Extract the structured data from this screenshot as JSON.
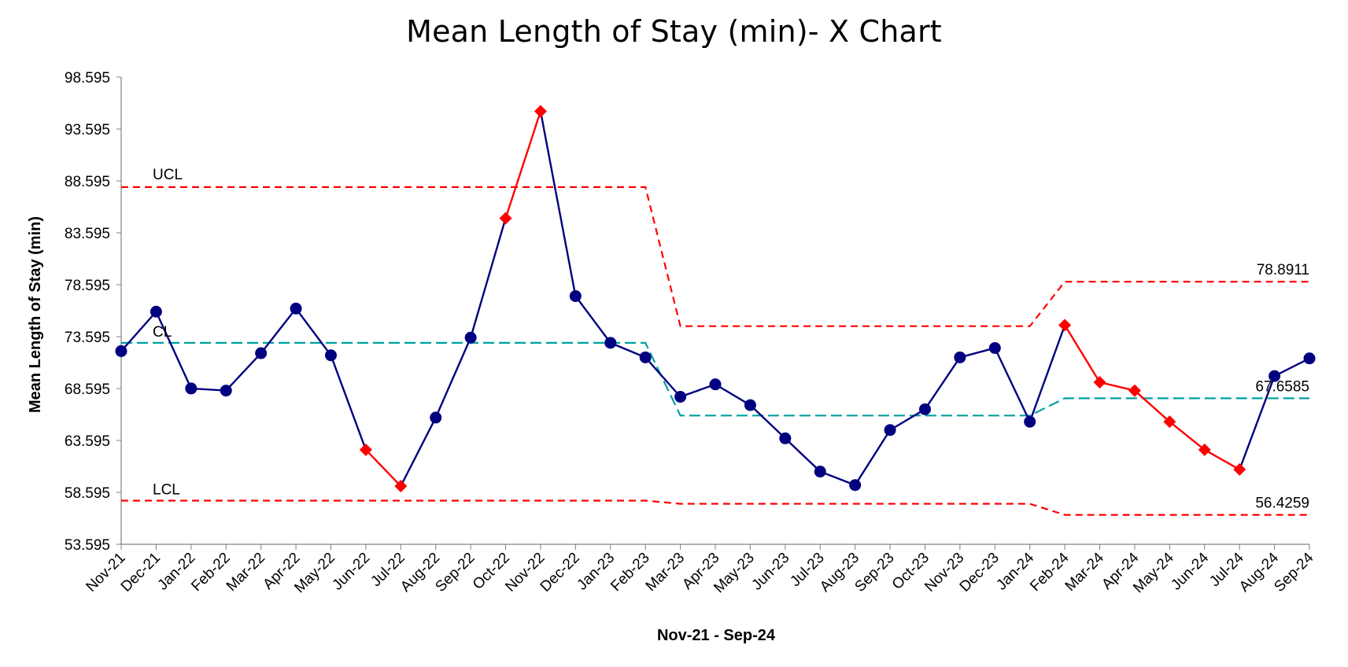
{
  "chart_data": {
    "type": "line",
    "title": "Mean Length of Stay (min)- X Chart",
    "xlabel": "Nov-21 - Sep-24",
    "ylabel": "Mean Length of Stay (min)",
    "ylim": [
      53.595,
      98.595
    ],
    "yticks": [
      "53.595",
      "58.595",
      "63.595",
      "68.595",
      "73.595",
      "78.595",
      "83.595",
      "88.595",
      "93.595",
      "98.595"
    ],
    "categories": [
      "Nov-21",
      "Dec-21",
      "Jan-22",
      "Feb-22",
      "Mar-22",
      "Apr-22",
      "May-22",
      "Jun-22",
      "Jul-22",
      "Aug-22",
      "Sep-22",
      "Oct-22",
      "Nov-22",
      "Dec-22",
      "Jan-23",
      "Feb-23",
      "Mar-23",
      "Apr-23",
      "May-23",
      "Jun-23",
      "Jul-23",
      "Aug-23",
      "Sep-23",
      "Oct-23",
      "Nov-23",
      "Dec-23",
      "Jan-24",
      "Feb-24",
      "Mar-24",
      "Apr-24",
      "May-24",
      "Jun-24",
      "Jul-24",
      "Aug-24",
      "Sep-24"
    ],
    "series": [
      {
        "role": "measurement",
        "values": [
          72.2,
          76.0,
          68.6,
          68.4,
          72.0,
          76.3,
          71.8,
          62.7,
          59.2,
          65.8,
          73.5,
          85.0,
          95.3,
          77.5,
          73.0,
          71.6,
          67.8,
          69.0,
          67.0,
          63.8,
          60.6,
          59.3,
          64.6,
          66.6,
          71.6,
          72.5,
          65.4,
          74.7,
          69.2,
          68.4,
          65.4,
          62.7,
          60.8,
          69.8,
          71.5
        ],
        "signal": [
          false,
          false,
          false,
          false,
          false,
          false,
          false,
          true,
          true,
          false,
          false,
          true,
          true,
          false,
          false,
          false,
          false,
          false,
          false,
          false,
          false,
          false,
          false,
          false,
          false,
          false,
          false,
          true,
          true,
          true,
          true,
          true,
          true,
          false,
          false
        ]
      },
      {
        "name": "UCL",
        "values": [
          88.0,
          88.0,
          88.0,
          88.0,
          88.0,
          88.0,
          88.0,
          88.0,
          88.0,
          88.0,
          88.0,
          88.0,
          88.0,
          88.0,
          88.0,
          88.0,
          74.6,
          74.6,
          74.6,
          74.6,
          74.6,
          74.6,
          74.6,
          74.6,
          74.6,
          74.6,
          74.6,
          78.8911,
          78.8911,
          78.8911,
          78.8911,
          78.8911,
          78.8911,
          78.8911,
          78.8911
        ]
      },
      {
        "name": "CL",
        "values": [
          73.0,
          73.0,
          73.0,
          73.0,
          73.0,
          73.0,
          73.0,
          73.0,
          73.0,
          73.0,
          73.0,
          73.0,
          73.0,
          73.0,
          73.0,
          73.0,
          66.0,
          66.0,
          66.0,
          66.0,
          66.0,
          66.0,
          66.0,
          66.0,
          66.0,
          66.0,
          66.0,
          67.6585,
          67.6585,
          67.6585,
          67.6585,
          67.6585,
          67.6585,
          67.6585,
          67.6585
        ]
      },
      {
        "name": "LCL",
        "values": [
          57.8,
          57.8,
          57.8,
          57.8,
          57.8,
          57.8,
          57.8,
          57.8,
          57.8,
          57.8,
          57.8,
          57.8,
          57.8,
          57.8,
          57.8,
          57.8,
          57.5,
          57.5,
          57.5,
          57.5,
          57.5,
          57.5,
          57.5,
          57.5,
          57.5,
          57.5,
          57.5,
          56.4259,
          56.4259,
          56.4259,
          56.4259,
          56.4259,
          56.4259,
          56.4259,
          56.4259
        ]
      }
    ],
    "line_labels": {
      "ucl": "UCL",
      "cl": "CL",
      "lcl": "LCL",
      "ucl_end": "78.8911",
      "cl_end": "67.6585",
      "lcl_end": "56.4259"
    },
    "colors": {
      "measurement": "#000080",
      "signal": "#ff0000",
      "limits": "#ff0000",
      "center": "#00a0a0",
      "axis": "#808080"
    },
    "grid": false,
    "legend": "none"
  }
}
